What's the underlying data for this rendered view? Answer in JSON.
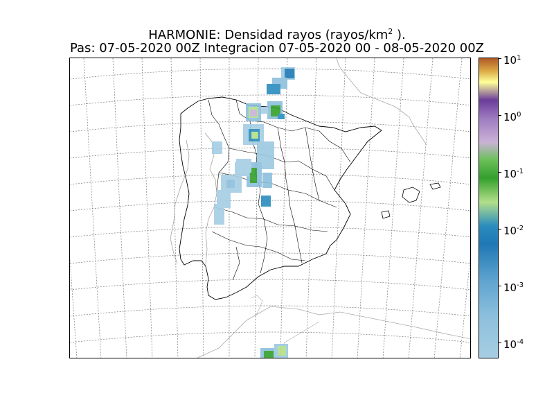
{
  "figure": {
    "title_prefix": "HARMONIE: Densidad rayos  (rayos/km",
    "title_unit_exponent": "2",
    "title_suffix": " ).",
    "subtitle": "Pas: 07-05-2020 00Z Integracion 07-05-2020 00 - 08-05-2020 00Z"
  },
  "colorbar": {
    "scale": "log",
    "range": [
      5e-05,
      10
    ],
    "ticks": [
      {
        "base": "10",
        "exponent": "1"
      },
      {
        "base": "10",
        "exponent": "0"
      },
      {
        "base": "10",
        "exponent": "-1"
      },
      {
        "base": "10",
        "exponent": "-2"
      },
      {
        "base": "10",
        "exponent": "-3"
      },
      {
        "base": "10",
        "exponent": "-4"
      }
    ],
    "colors": [
      "#a6cee3",
      "#1f78b4",
      "#b2df8a",
      "#33a02c",
      "#cab2d6",
      "#6a3d9a",
      "#ffff99",
      "#b15928"
    ]
  },
  "map": {
    "projection_grid": "dashed",
    "region": "Iberian Peninsula",
    "lightning_areas": [
      {
        "area": "Cantabrian sea / Bay of Biscay",
        "level": "10^-2"
      },
      {
        "area": "Asturias / Cantabria",
        "level": "10^-1"
      },
      {
        "area": "Castilla y Leon (west)",
        "level": "10^-1"
      },
      {
        "area": "Portugal / Extremadura border",
        "level": "10^-3"
      },
      {
        "area": "North Africa (south edge)",
        "level": "10^-1"
      }
    ]
  }
}
